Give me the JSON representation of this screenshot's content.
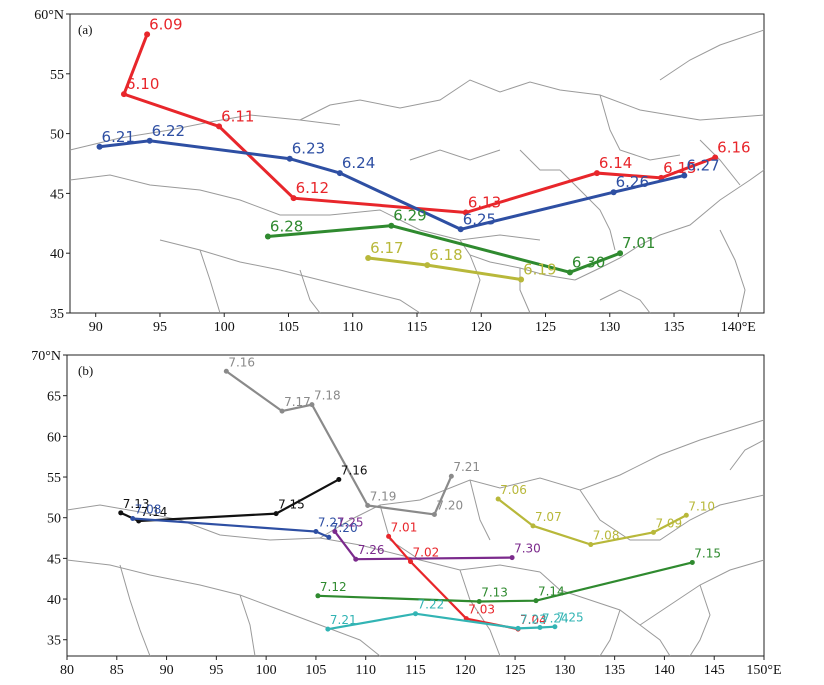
{
  "figure": {
    "colors": {
      "red": "#e8262b",
      "blue": "#2e4fa3",
      "green": "#2f8a2f",
      "olive": "#b8b83a",
      "gray": "#8a8a8a",
      "black": "#111111",
      "purple": "#7b2a8c",
      "cyan": "#32b4b4",
      "coast": "#9a9a9a"
    }
  },
  "chart_data": [
    {
      "id": "a",
      "type": "map-tracks",
      "panel_label": "(a)",
      "xlim": [
        88,
        142
      ],
      "ylim": [
        35,
        60
      ],
      "x_ticks": [
        90,
        95,
        100,
        105,
        110,
        115,
        120,
        125,
        130,
        135,
        140
      ],
      "y_ticks": [
        35,
        40,
        45,
        50,
        55,
        60
      ],
      "x_tick_labels": [
        "90",
        "95",
        "100",
        "105",
        "110",
        "115",
        "120",
        "125",
        "130",
        "135",
        "140°E"
      ],
      "y_tick_labels": [
        "35",
        "40",
        "45",
        "50",
        "55",
        "60°N"
      ],
      "series": [
        {
          "name": "track-red",
          "color": "red",
          "points": [
            {
              "x": 94.0,
              "y": 58.3,
              "label": "6.09"
            },
            {
              "x": 92.2,
              "y": 53.3,
              "label": "6.10"
            },
            {
              "x": 99.6,
              "y": 50.6,
              "label": "6.11"
            },
            {
              "x": 105.4,
              "y": 44.6,
              "label": "6.12"
            },
            {
              "x": 118.8,
              "y": 43.4,
              "label": "6.13"
            },
            {
              "x": 129.0,
              "y": 46.7,
              "label": "6.14"
            },
            {
              "x": 134.0,
              "y": 46.3,
              "label": "6.15"
            },
            {
              "x": 138.2,
              "y": 48.0,
              "label": "6.16"
            }
          ]
        },
        {
          "name": "track-blue",
          "color": "blue",
          "points": [
            {
              "x": 90.3,
              "y": 48.9,
              "label": "6.21"
            },
            {
              "x": 94.2,
              "y": 49.4,
              "label": "6.22"
            },
            {
              "x": 105.1,
              "y": 47.9,
              "label": "6.23"
            },
            {
              "x": 109.0,
              "y": 46.7,
              "label": "6.24"
            },
            {
              "x": 118.4,
              "y": 42.0,
              "label": "6.25"
            },
            {
              "x": 130.3,
              "y": 45.1,
              "label": "6.26"
            },
            {
              "x": 135.8,
              "y": 46.5,
              "label": "6.27"
            }
          ]
        },
        {
          "name": "track-green",
          "color": "green",
          "points": [
            {
              "x": 103.4,
              "y": 41.4,
              "label": "6.28"
            },
            {
              "x": 113.0,
              "y": 42.3,
              "label": "6.29"
            },
            {
              "x": 126.9,
              "y": 38.4,
              "label": "6.30"
            },
            {
              "x": 130.8,
              "y": 40.0,
              "label": "7.01"
            }
          ]
        },
        {
          "name": "track-olive",
          "color": "olive",
          "points": [
            {
              "x": 111.2,
              "y": 39.6,
              "label": "6.17"
            },
            {
              "x": 115.8,
              "y": 39.0,
              "label": "6.18"
            },
            {
              "x": 123.1,
              "y": 37.8,
              "label": "6.19"
            }
          ]
        }
      ]
    },
    {
      "id": "b",
      "type": "map-tracks",
      "panel_label": "(b)",
      "xlim": [
        80,
        150
      ],
      "ylim": [
        33,
        70
      ],
      "x_ticks": [
        80,
        85,
        90,
        95,
        100,
        105,
        110,
        115,
        120,
        125,
        130,
        135,
        140,
        145,
        150
      ],
      "y_ticks": [
        35,
        40,
        45,
        50,
        55,
        60,
        65,
        70
      ],
      "x_tick_labels": [
        "80",
        "85",
        "90",
        "95",
        "100",
        "105",
        "110",
        "115",
        "120",
        "125",
        "130",
        "135",
        "140",
        "145",
        "150°E"
      ],
      "y_tick_labels": [
        "35",
        "40",
        "45",
        "50",
        "55",
        "60",
        "65",
        "70°N"
      ],
      "series": [
        {
          "name": "track-gray",
          "color": "gray",
          "points": [
            {
              "x": 96.0,
              "y": 68.0,
              "label": "7.16"
            },
            {
              "x": 101.6,
              "y": 63.1,
              "label": "7.17"
            },
            {
              "x": 104.6,
              "y": 63.9,
              "label": "7.18"
            },
            {
              "x": 110.2,
              "y": 51.5,
              "label": "7.19"
            },
            {
              "x": 116.9,
              "y": 50.4,
              "label": "7.20"
            },
            {
              "x": 118.6,
              "y": 55.1,
              "label": "7.21"
            }
          ]
        },
        {
          "name": "track-black",
          "color": "black",
          "points": [
            {
              "x": 85.4,
              "y": 50.6,
              "label": "7.13"
            },
            {
              "x": 87.2,
              "y": 49.6,
              "label": "7.14"
            },
            {
              "x": 101.0,
              "y": 50.5,
              "label": "7.15"
            },
            {
              "x": 107.3,
              "y": 54.7,
              "label": "7.16"
            }
          ]
        },
        {
          "name": "track-blue",
          "color": "blue",
          "points": [
            {
              "x": 86.6,
              "y": 49.9,
              "label": "7.08"
            },
            {
              "x": 105.0,
              "y": 48.3,
              "label": "7.21"
            },
            {
              "x": 106.3,
              "y": 47.6,
              "label": "7.20"
            }
          ]
        },
        {
          "name": "track-purple",
          "color": "purple",
          "points": [
            {
              "x": 106.9,
              "y": 48.3,
              "label": "7.25"
            },
            {
              "x": 109.0,
              "y": 44.9,
              "label": "7.26"
            },
            {
              "x": 124.7,
              "y": 45.1,
              "label": "7.30"
            }
          ]
        },
        {
          "name": "track-red",
          "color": "red",
          "points": [
            {
              "x": 112.3,
              "y": 47.7,
              "label": "7.01"
            },
            {
              "x": 114.5,
              "y": 44.6,
              "label": "7.02"
            },
            {
              "x": 120.1,
              "y": 37.6,
              "label": "7.03"
            },
            {
              "x": 125.3,
              "y": 36.3,
              "label": "7.04"
            }
          ]
        },
        {
          "name": "track-olive",
          "color": "olive",
          "points": [
            {
              "x": 123.3,
              "y": 52.3,
              "label": "7.06"
            },
            {
              "x": 126.8,
              "y": 49.0,
              "label": "7.07"
            },
            {
              "x": 132.6,
              "y": 46.7,
              "label": "7.08"
            },
            {
              "x": 138.9,
              "y": 48.2,
              "label": "7.09"
            },
            {
              "x": 142.2,
              "y": 50.3,
              "label": "7.10"
            }
          ]
        },
        {
          "name": "track-green",
          "color": "green",
          "points": [
            {
              "x": 105.2,
              "y": 40.4,
              "label": "7.12"
            },
            {
              "x": 121.4,
              "y": 39.7,
              "label": "7.13"
            },
            {
              "x": 127.1,
              "y": 39.8,
              "label": "7.14"
            },
            {
              "x": 142.8,
              "y": 44.5,
              "label": "7.15"
            }
          ]
        },
        {
          "name": "track-cyan",
          "color": "cyan",
          "points": [
            {
              "x": 106.2,
              "y": 36.3,
              "label": "7.21"
            },
            {
              "x": 115.0,
              "y": 38.2,
              "label": "7.22"
            },
            {
              "x": 125.3,
              "y": 36.4,
              "label": "7.23"
            },
            {
              "x": 127.5,
              "y": 36.5,
              "label": "7.24"
            },
            {
              "x": 129.0,
              "y": 36.6,
              "label": "7.25"
            }
          ]
        }
      ]
    }
  ]
}
